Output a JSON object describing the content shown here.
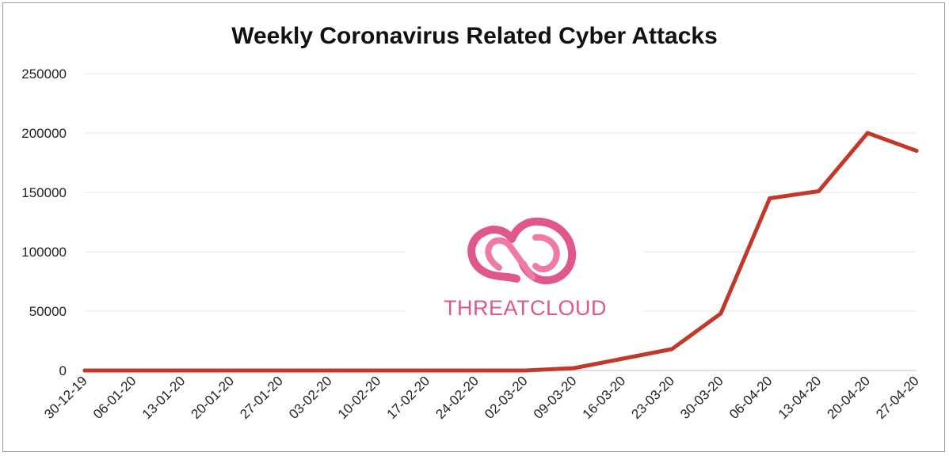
{
  "chart_data": {
    "type": "line",
    "title": "Weekly Coronavirus Related Cyber Attacks",
    "xlabel": "",
    "ylabel": "",
    "categories": [
      "30-12-19",
      "06-01-20",
      "13-01-20",
      "20-01-20",
      "27-01-20",
      "03-02-20",
      "10-02-20",
      "17-02-20",
      "24-02-20",
      "02-03-20",
      "09-03-20",
      "16-03-20",
      "23-03-20",
      "30-03-20",
      "06-04-20",
      "13-04-20",
      "20-04-20",
      "27-04-20"
    ],
    "series": [
      {
        "color": "#c0392b",
        "values": [
          0,
          0,
          0,
          0,
          0,
          0,
          0,
          0,
          0,
          0,
          2000,
          10000,
          18000,
          48000,
          145000,
          151000,
          200000,
          185000
        ]
      }
    ],
    "ylim": [
      0,
      250000
    ],
    "yticks": [
      "0",
      "50000",
      "100000",
      "150000",
      "200000",
      "250000"
    ],
    "grid": true,
    "legend": "none"
  },
  "watermark": {
    "text": "THREATCLOUD",
    "icon": "cloud-loop-logo",
    "color": "#e0578c"
  }
}
